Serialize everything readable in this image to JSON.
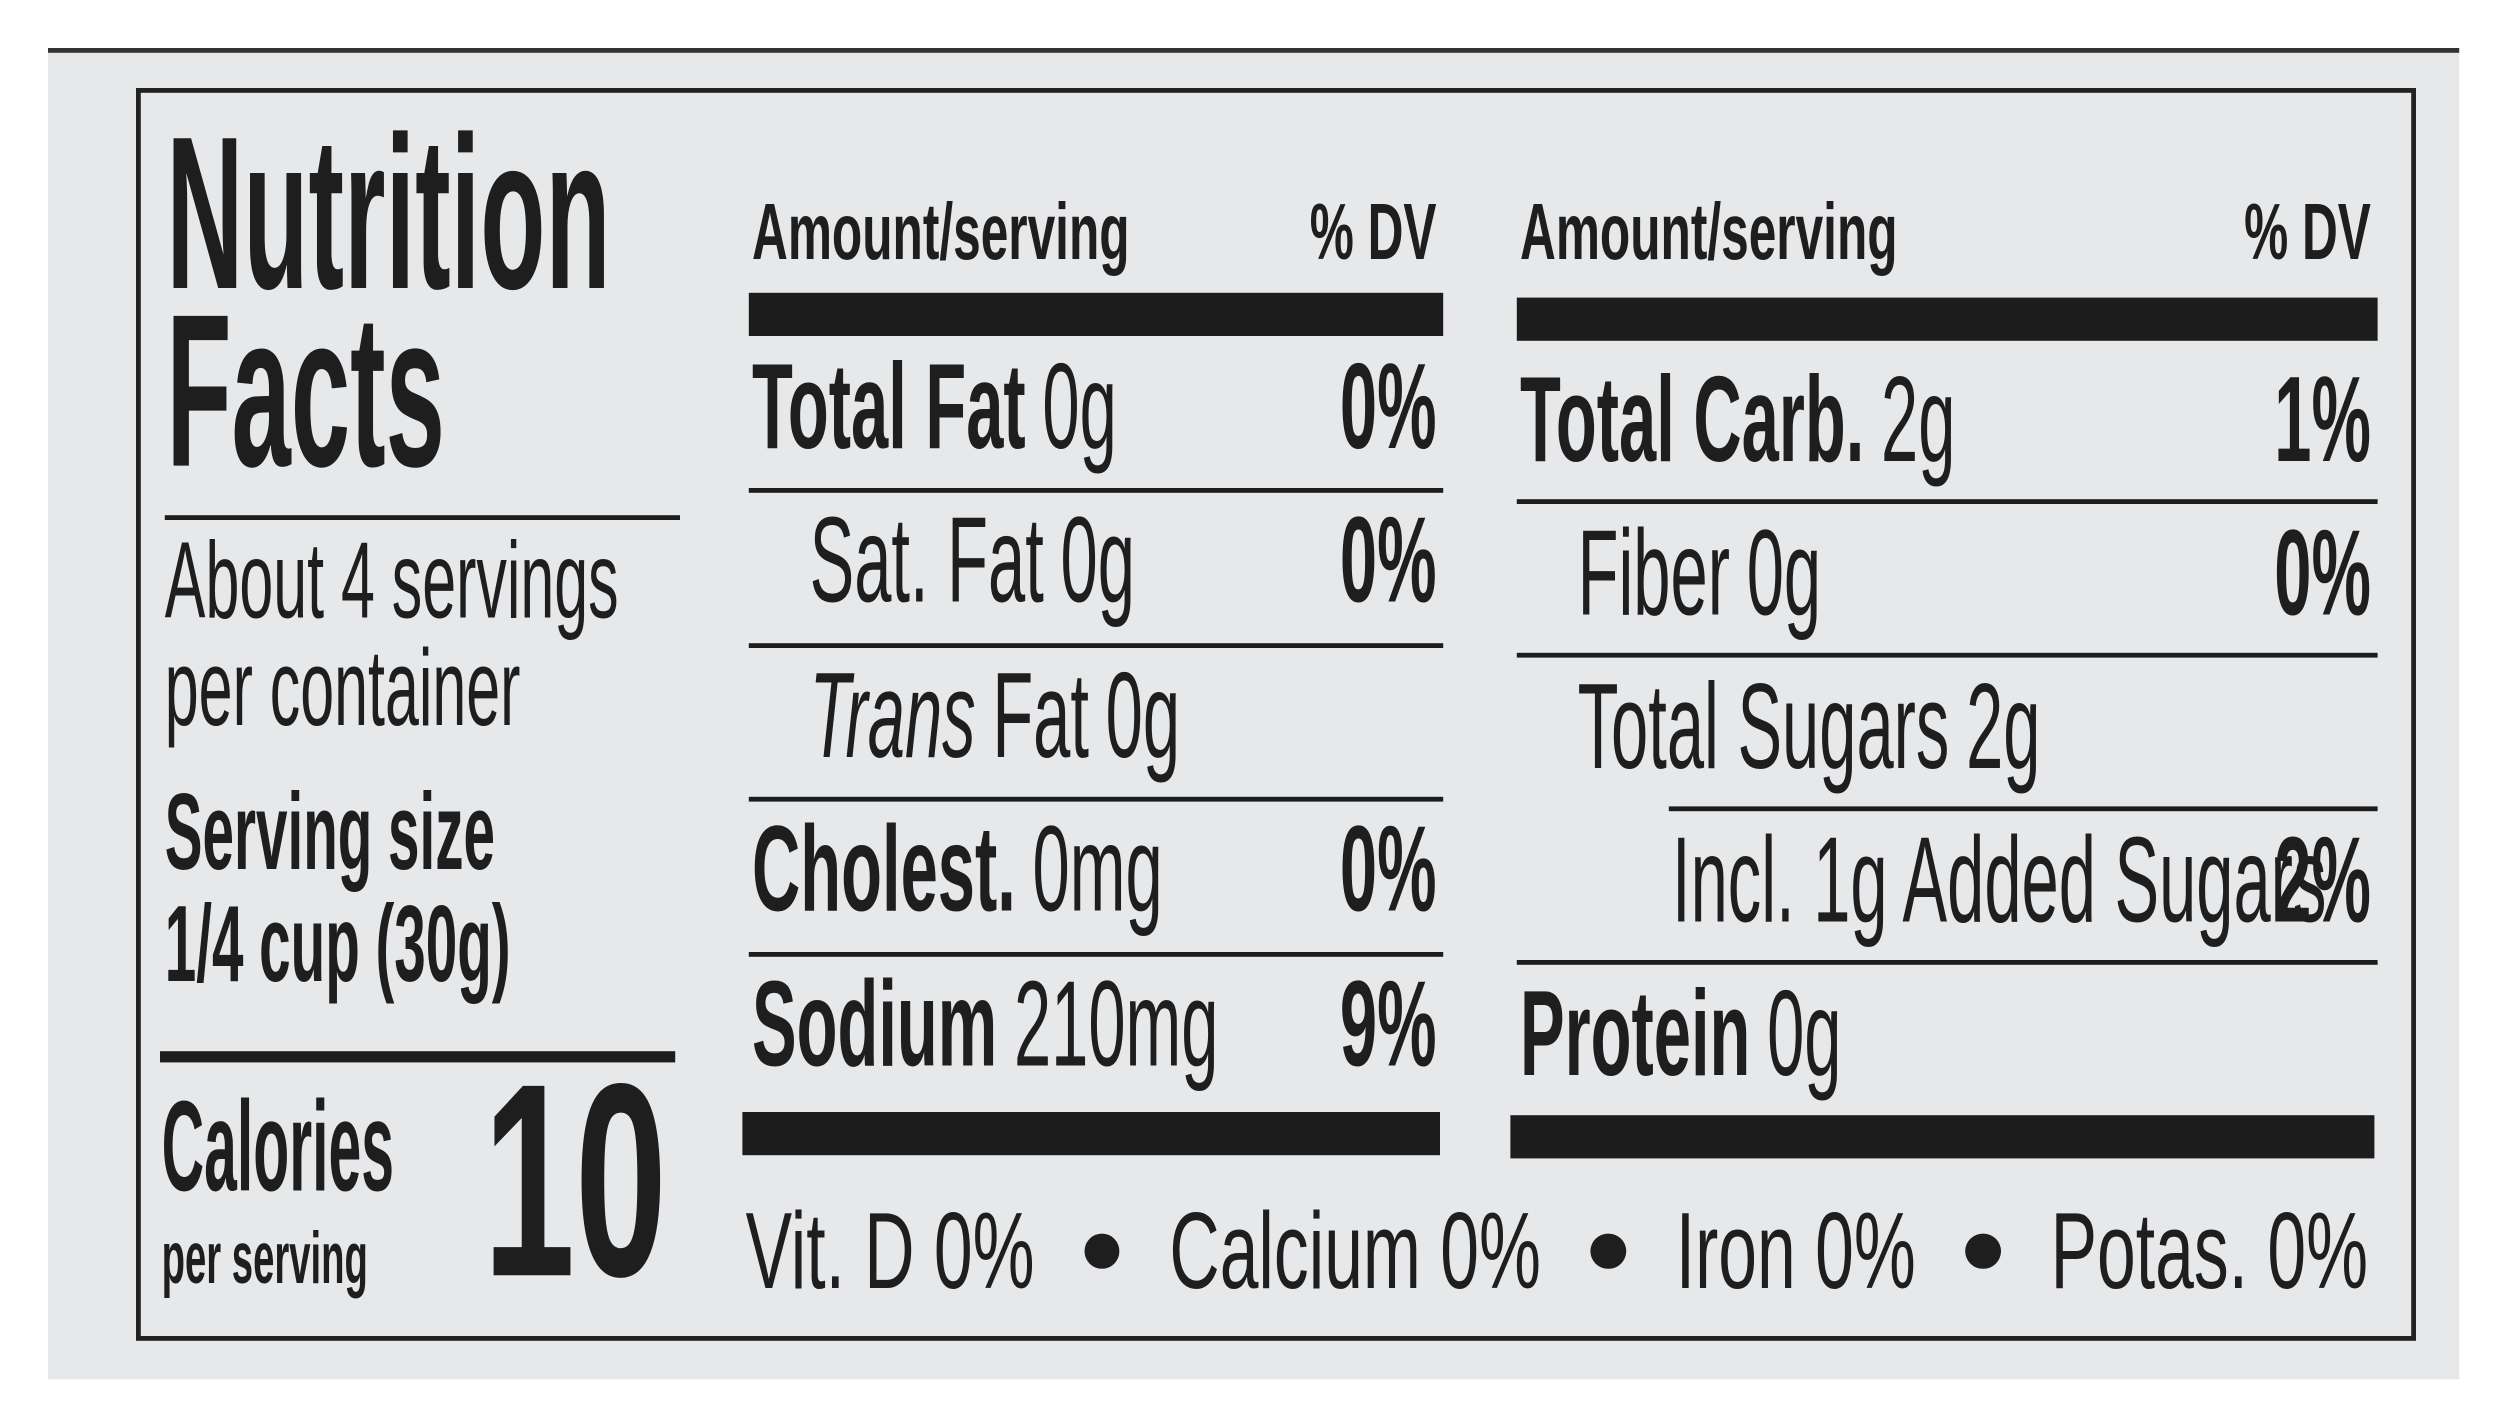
{
  "title": [
    "Nutrition",
    "Facts"
  ],
  "servings_per_container": [
    "About 4 servings",
    "per container"
  ],
  "serving_size": {
    "label": "Serving size",
    "amount": "1/4 cup (30g)"
  },
  "calories": {
    "label": "Calories",
    "per": "per serving",
    "value": 10
  },
  "columns": [
    {
      "header": {
        "amount": "Amount/serving",
        "dv": "% DV"
      },
      "rows": [
        {
          "name": "Total Fat",
          "amount": "0g",
          "dv": "0%",
          "bold": true,
          "level": 0
        },
        {
          "name": "Sat. Fat",
          "amount": "0g",
          "dv": "0%",
          "level": 1
        },
        {
          "italic": "Trans",
          "name": "Fat",
          "amount": "0g",
          "level": 1
        },
        {
          "name": "Cholest.",
          "amount": "0mg",
          "dv": "0%",
          "bold": true,
          "level": 0
        },
        {
          "name": "Sodium",
          "amount": "210mg",
          "dv": "9%",
          "bold": true,
          "level": 0
        }
      ]
    },
    {
      "header": {
        "amount": "Amount/serving",
        "dv": "% DV"
      },
      "rows": [
        {
          "name": "Total Carb.",
          "amount": "2g",
          "dv": "1%",
          "bold": true,
          "level": 0
        },
        {
          "name": "Fiber",
          "amount": "0g",
          "dv": "0%",
          "level": 1
        },
        {
          "name": "Total Sugars",
          "amount": "2g",
          "level": 1
        },
        {
          "name": "Incl. 1g Added Sugars",
          "dv": "2%",
          "level": 2
        },
        {
          "name": "Protein",
          "amount": "0g",
          "bold": true,
          "level": 0
        }
      ]
    }
  ],
  "footer": [
    "Vit. D 0%",
    "Calcium 0%",
    "Iron 0%",
    "Potas. 0%"
  ]
}
